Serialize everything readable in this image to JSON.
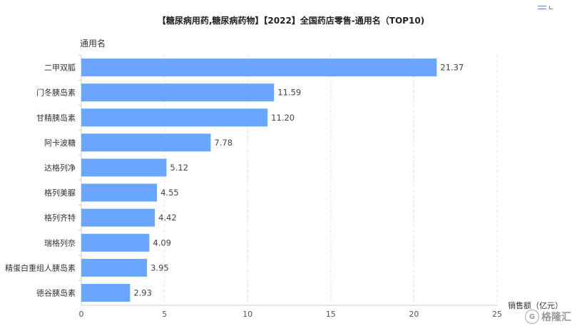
{
  "chart_data": {
    "type": "bar",
    "orientation": "horizontal",
    "title": "【糖尿病用药,糖尿病药物】【2022】全国药店零售-通用名（TOP10)",
    "ylabel": "通用名",
    "xlabel": "销售额（亿元）",
    "categories": [
      "二甲双胍",
      "门冬胰岛素",
      "甘精胰岛素",
      "阿卡波糖",
      "达格列净",
      "格列美脲",
      "格列齐特",
      "瑞格列奈",
      "精蛋白重组人胰岛素",
      "德谷胰岛素"
    ],
    "values": [
      21.37,
      11.59,
      11.2,
      7.78,
      5.12,
      4.55,
      4.42,
      4.09,
      3.95,
      2.93
    ],
    "value_labels": [
      "21.37",
      "11.59",
      "11.20",
      "7.78",
      "5.12",
      "4.55",
      "4.42",
      "4.09",
      "3.95",
      "2.93"
    ],
    "xlim": [
      0,
      25
    ],
    "xticks": [
      "0",
      "5",
      "10",
      "15",
      "20",
      "25"
    ],
    "grid": "vertical dashed",
    "bar_color": "#6aa6ff"
  },
  "watermark": {
    "logo_icon": "G",
    "text": "格隆汇"
  }
}
